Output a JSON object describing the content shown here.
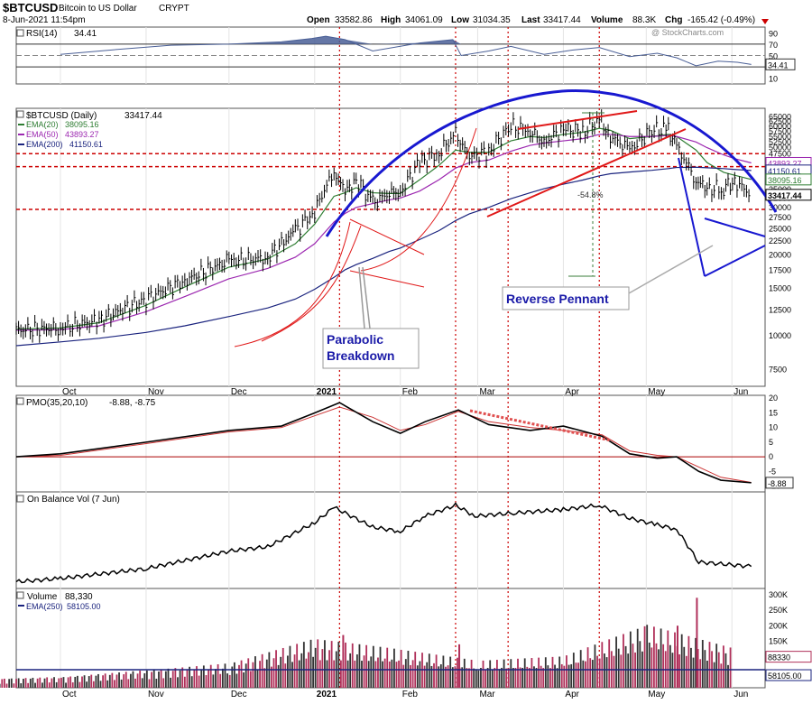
{
  "header": {
    "symbol": "$BTCUSD",
    "name": "Bitcoin to US Dollar",
    "exchange": "CRYPT",
    "datetime": "8-Jun-2021 11:54pm",
    "open_label": "Open",
    "open": "33582.86",
    "high_label": "High",
    "high": "34061.09",
    "low_label": "Low",
    "low": "31034.35",
    "last_label": "Last",
    "last": "33417.44",
    "volume_label": "Volume",
    "volume": "88.3K",
    "chg_label": "Chg",
    "chg": "-165.42 (-0.49%)",
    "watermark": "@ StockCharts.com"
  },
  "colors": {
    "price": "#000000",
    "ema20": "#2e7d32",
    "ema50": "#9c27b0",
    "ema200": "#1a237e",
    "arc": "#1818d0",
    "trend_red": "#e01818",
    "hline_red": "#cc0000",
    "volume_up": "#b0305a",
    "volume_down": "#333333",
    "rsi_fill": "#4a5f96",
    "pmo_signal": "#cc3333"
  },
  "x_axis": {
    "months": [
      "Oct",
      "Nov",
      "Dec",
      "2021",
      "Feb",
      "Mar",
      "Apr",
      "May",
      "Jun"
    ]
  },
  "annotations": {
    "parabolic_line1": "Parabolic",
    "parabolic_line2": "Breakdown",
    "pennant": "Reverse Pennant",
    "pct": "-54.8%"
  },
  "chart_data": [
    {
      "panel": "RSI",
      "type": "line",
      "label": "RSI(14)",
      "value_text": "34.41",
      "last_value": 34.41,
      "y_ticks": [
        90,
        70,
        50,
        30,
        10
      ],
      "ylim": [
        0,
        100
      ],
      "overbought": 70,
      "oversold": 30,
      "x": [
        "2020-10-01",
        "2020-10-20",
        "2020-11-10",
        "2020-12-01",
        "2020-12-20",
        "2020-12-31",
        "2021-01-05",
        "2021-01-12",
        "2021-01-22",
        "2021-02-08",
        "2021-02-20",
        "2021-02-23",
        "2021-03-05",
        "2021-03-13",
        "2021-03-25",
        "2021-04-05",
        "2021-04-14",
        "2021-04-25",
        "2021-05-05",
        "2021-05-12",
        "2021-05-19",
        "2021-05-27",
        "2021-06-03",
        "2021-06-08"
      ],
      "values": [
        52,
        60,
        68,
        70,
        74,
        80,
        84,
        78,
        58,
        72,
        78,
        50,
        58,
        66,
        52,
        60,
        64,
        48,
        54,
        46,
        32,
        40,
        38,
        34.41
      ]
    },
    {
      "panel": "Price",
      "type": "line",
      "label": "$BTCUSD (Daily)",
      "value_text": "33417.44",
      "scale": "log",
      "ylim": [
        6500,
        70000
      ],
      "y_ticks": [
        65000,
        62500,
        60000,
        57500,
        55000,
        52500,
        50000,
        47500,
        45000,
        42500,
        40000,
        37500,
        35000,
        32500,
        30000,
        27500,
        25000,
        22500,
        20000,
        17500,
        15000,
        12500,
        10000,
        7500
      ],
      "x": [
        "2020-09-15",
        "2020-10-01",
        "2020-10-15",
        "2020-11-01",
        "2020-11-15",
        "2020-12-01",
        "2020-12-15",
        "2020-12-25",
        "2021-01-01",
        "2021-01-08",
        "2021-01-12",
        "2021-01-16",
        "2021-01-22",
        "2021-01-28",
        "2021-02-01",
        "2021-02-08",
        "2021-02-15",
        "2021-02-21",
        "2021-02-26",
        "2021-03-05",
        "2021-03-13",
        "2021-03-20",
        "2021-03-25",
        "2021-04-01",
        "2021-04-08",
        "2021-04-14",
        "2021-04-18",
        "2021-04-25",
        "2021-05-03",
        "2021-05-09",
        "2021-05-12",
        "2021-05-19",
        "2021-05-23",
        "2021-05-29",
        "2021-06-02",
        "2021-06-08"
      ],
      "values": [
        10500,
        10700,
        11400,
        13700,
        16000,
        19000,
        19500,
        24500,
        29000,
        40500,
        34000,
        38000,
        31000,
        34000,
        34000,
        44000,
        48000,
        56000,
        46000,
        48500,
        60000,
        58000,
        52000,
        59000,
        57000,
        63500,
        55000,
        49000,
        58000,
        58500,
        50000,
        38000,
        35000,
        35500,
        37500,
        33417.44
      ],
      "series": [
        {
          "name": "EMA(20)",
          "value_text": "38095.16",
          "last": 38095.16,
          "values": [
            10600,
            10700,
            11200,
            13000,
            15200,
            18000,
            19300,
            22000,
            26000,
            33000,
            34000,
            35500,
            34000,
            33800,
            33800,
            38000,
            43000,
            49000,
            48000,
            48000,
            53000,
            55000,
            54500,
            56000,
            57000,
            59000,
            58000,
            54000,
            55000,
            56000,
            55000,
            49000,
            44000,
            40500,
            39500,
            38095.16
          ]
        },
        {
          "name": "EMA(50)",
          "value_text": "43893.27",
          "last": 43893.27,
          "values": [
            10500,
            10550,
            10900,
            12300,
            14000,
            16300,
            17800,
            19600,
            22000,
            26500,
            28500,
            30000,
            31000,
            32000,
            32500,
            34500,
            38000,
            42000,
            44000,
            45000,
            48500,
            51000,
            52000,
            53000,
            54000,
            56000,
            56000,
            55000,
            55000,
            55500,
            55000,
            52500,
            50000,
            47000,
            45500,
            43893.27
          ]
        },
        {
          "name": "EMA(200)",
          "value_text": "41150.61",
          "last": 41150.61,
          "values": [
            9200,
            9500,
            9800,
            10300,
            10900,
            11800,
            12700,
            13700,
            14900,
            16500,
            17600,
            18400,
            19400,
            20600,
            21200,
            22800,
            24600,
            26800,
            28400,
            30000,
            32300,
            34000,
            35200,
            36600,
            37900,
            39300,
            40000,
            40600,
            41200,
            41800,
            42200,
            42300,
            42100,
            41800,
            41500,
            41150.61
          ]
        }
      ],
      "horizontal_levels": [
        47500,
        42500,
        29500
      ],
      "right_labels": [
        "43893.27",
        "41150.61",
        "38095.16",
        "33417.44"
      ]
    },
    {
      "panel": "PMO",
      "type": "line",
      "label": "PMO(35,20,10)",
      "value_text": "-8.88, -8.75",
      "y_ticks": [
        20,
        15,
        10,
        5,
        0,
        -5,
        -10
      ],
      "ylim": [
        -12,
        21
      ],
      "x": [
        "2020-09-15",
        "2020-10-01",
        "2020-11-01",
        "2020-12-01",
        "2020-12-20",
        "2021-01-01",
        "2021-01-10",
        "2021-01-22",
        "2021-02-01",
        "2021-02-10",
        "2021-02-22",
        "2021-03-05",
        "2021-03-20",
        "2021-04-01",
        "2021-04-15",
        "2021-04-25",
        "2021-05-05",
        "2021-05-12",
        "2021-05-20",
        "2021-05-28",
        "2021-06-08"
      ],
      "values": [
        0,
        1,
        5,
        9,
        10.5,
        15,
        18.5,
        12,
        8,
        12,
        16,
        11,
        9,
        10.5,
        7,
        1,
        -0.5,
        0,
        -5,
        -8,
        -8.88
      ],
      "series": [
        {
          "name": "signal",
          "values": [
            0,
            0.5,
            4.5,
            8.5,
            10,
            14,
            17,
            13.5,
            9,
            11,
            15.5,
            12,
            10,
            9,
            7.5,
            2,
            0.5,
            0,
            -3.5,
            -7,
            -8.75
          ]
        }
      ],
      "right_label": "-8.88"
    },
    {
      "panel": "OBV",
      "type": "line",
      "label": "On Balance Vol (7 Jun)",
      "x": [
        "2020-09-15",
        "2020-10-01",
        "2020-11-01",
        "2020-12-01",
        "2020-12-15",
        "2021-01-01",
        "2021-01-08",
        "2021-01-22",
        "2021-02-01",
        "2021-02-10",
        "2021-02-21",
        "2021-02-28",
        "2021-03-15",
        "2021-04-01",
        "2021-04-14",
        "2021-04-25",
        "2021-05-05",
        "2021-05-12",
        "2021-05-20",
        "2021-06-08"
      ],
      "values": [
        2,
        5,
        14,
        30,
        34,
        56,
        70,
        52,
        48,
        62,
        72,
        62,
        65,
        68,
        72,
        60,
        54,
        50,
        20,
        16
      ],
      "ylim": [
        0,
        80
      ]
    },
    {
      "panel": "Volume",
      "type": "bar",
      "label": "Volume",
      "value_text": "88,330",
      "ema_label": "EMA(250)",
      "ema_value_text": "58105.00",
      "y_ticks": [
        "300K",
        "250K",
        "200K",
        "150K",
        "100K",
        "50K"
      ],
      "ylim": [
        0,
        320000
      ],
      "ema250": 58105,
      "right_labels": [
        "88330",
        "58105.00"
      ],
      "x": [
        "2020-09",
        "2020-10",
        "2020-11",
        "2020-12",
        "2021-01",
        "2021-02",
        "2021-03",
        "2021-04",
        "2021-05",
        "2021-06"
      ],
      "values": [
        20000,
        25000,
        40000,
        55000,
        110000,
        85000,
        60000,
        70000,
        140000,
        90000
      ]
    }
  ]
}
